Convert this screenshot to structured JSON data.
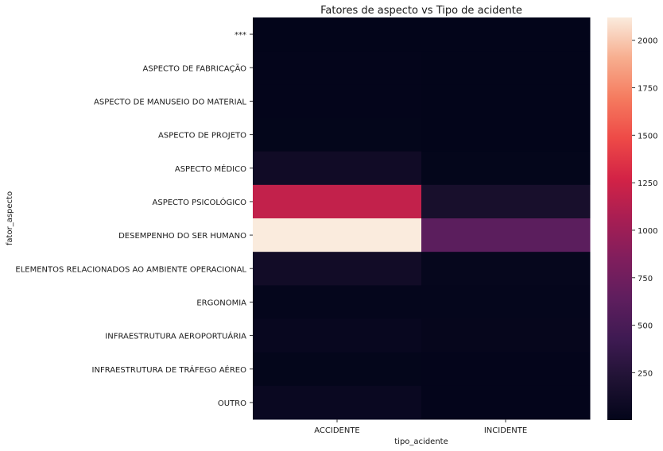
{
  "chart_data": {
    "type": "heatmap",
    "title": "Fatores de aspecto vs Tipo de acidente",
    "xlabel": "tipo_acidente",
    "ylabel": "fator_aspecto",
    "x_categories": [
      "ACCIDENTE",
      "INCIDENTE"
    ],
    "y_categories": [
      "***",
      "ASPECTO DE FABRICAÇÃO",
      "ASPECTO DE MANUSEIO DO MATERIAL",
      "ASPECTO DE PROJETO",
      "ASPECTO MÉDICO",
      "ASPECTO PSICOLÓGICO",
      "DESEMPENHO DO SER HUMANO",
      "ELEMENTOS RELACIONADOS AO AMBIENTE OPERACIONAL",
      "ERGONOMIA",
      "INFRAESTRUTURA AEROPORTUÁRIA",
      "INFRAESTRUTURA DE TRÁFEGO AÉREO",
      "OUTRO"
    ],
    "values": [
      [
        8,
        6
      ],
      [
        10,
        5
      ],
      [
        12,
        5
      ],
      [
        15,
        6
      ],
      [
        110,
        15
      ],
      [
        1190,
        160
      ],
      [
        2120,
        620
      ],
      [
        115,
        30
      ],
      [
        22,
        18
      ],
      [
        45,
        25
      ],
      [
        15,
        12
      ],
      [
        60,
        10
      ]
    ],
    "colorbar": {
      "min": 5,
      "max": 2120,
      "ticks": [
        250,
        500,
        750,
        1000,
        1250,
        1500,
        1750,
        2000
      ],
      "colormap": "rocket"
    }
  }
}
